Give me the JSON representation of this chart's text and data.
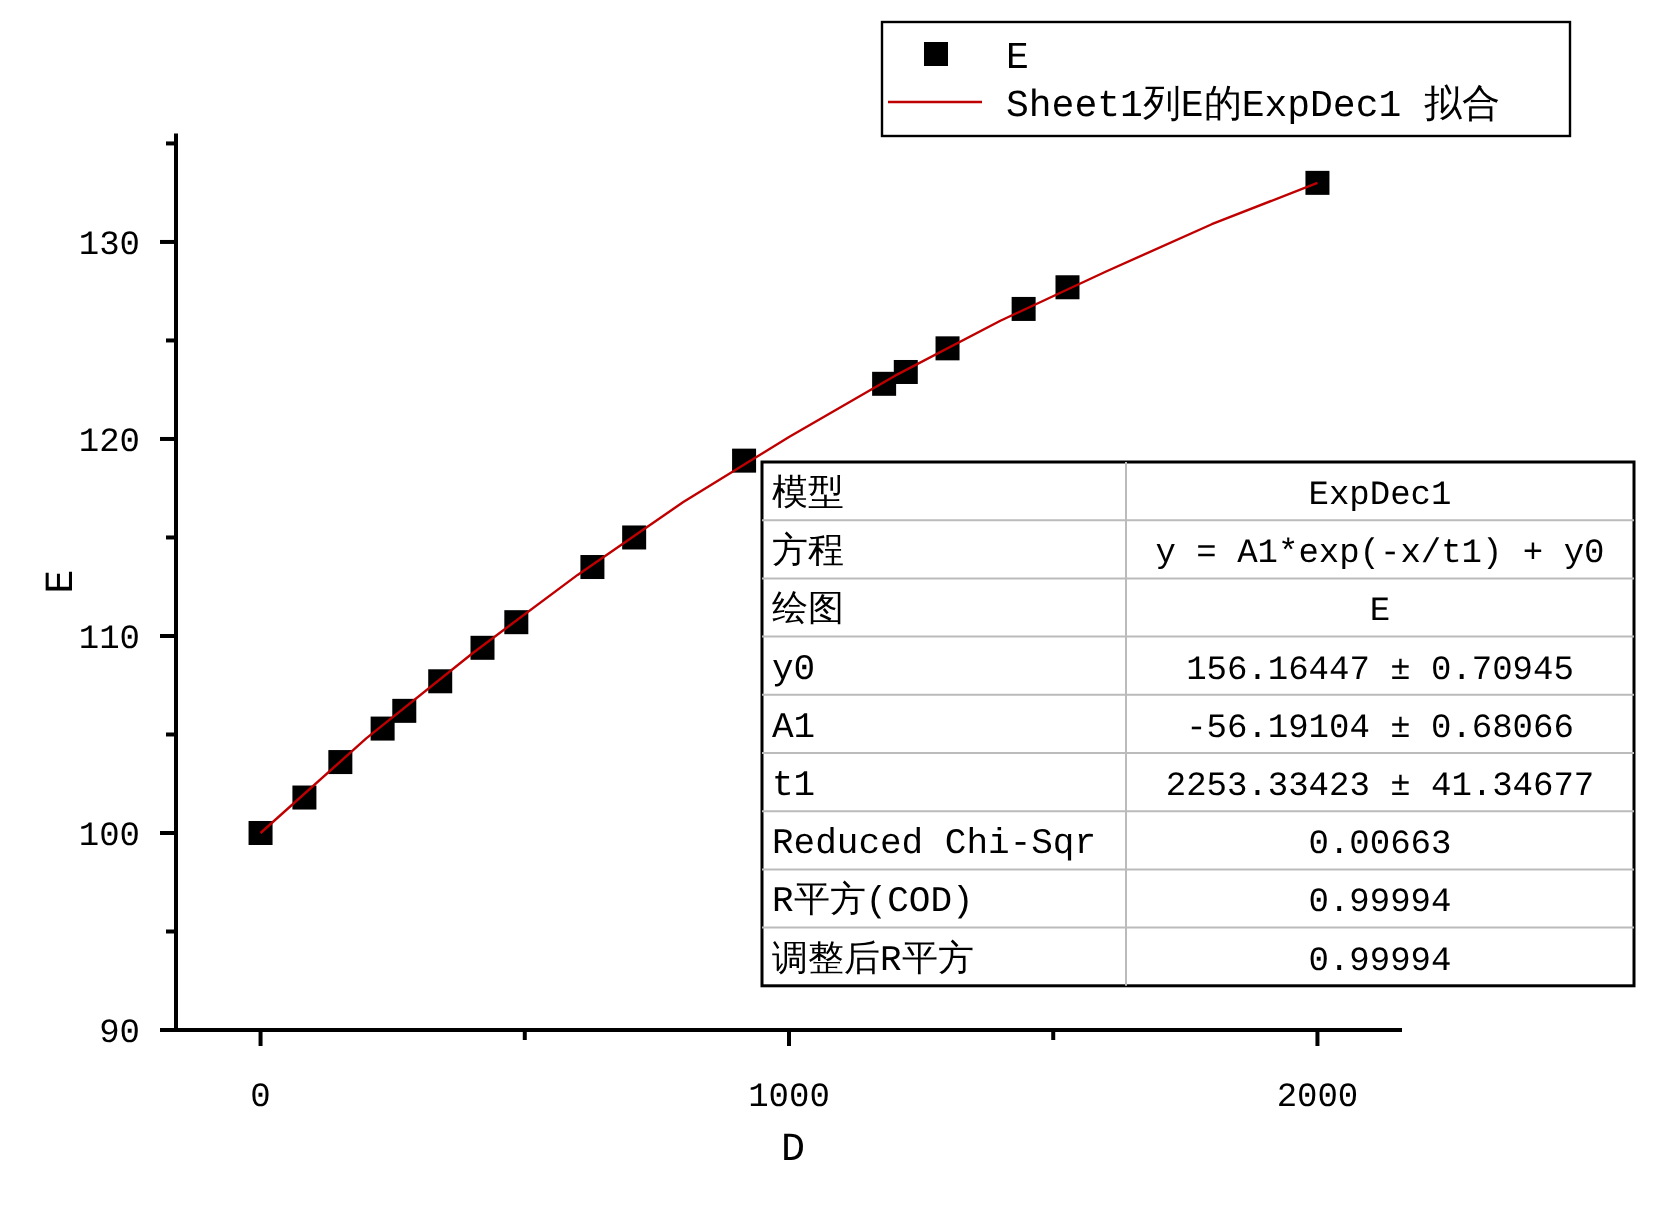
{
  "chart_data": {
    "type": "scatter",
    "xlabel": "D",
    "ylabel": "E",
    "xlim": [
      -160,
      2160
    ],
    "ylim": [
      90,
      135.5
    ],
    "xticks": [
      0,
      {
        "value": 500,
        "label": null
      },
      1000,
      {
        "value": 1500,
        "label": null
      },
      2000
    ],
    "yticks": [
      90,
      {
        "value": 95,
        "label": null
      },
      100,
      {
        "value": 105,
        "label": null
      },
      110,
      {
        "value": 115,
        "label": null
      },
      120,
      {
        "value": 125,
        "label": null
      },
      130,
      {
        "value": 135,
        "label": null
      }
    ],
    "legend": "top right",
    "series": [
      {
        "name": "E",
        "color": "#000000",
        "marker": "square",
        "x": [
          0,
          83,
          151,
          231,
          272,
          340,
          420,
          484,
          628,
          707,
          915,
          1180,
          1221,
          1300,
          1444,
          1527,
          2000
        ],
        "values": [
          100,
          101.8,
          103.6,
          105.3,
          106.2,
          107.7,
          109.4,
          110.7,
          113.5,
          115.0,
          118.9,
          122.8,
          123.4,
          124.6,
          126.6,
          127.7,
          133.0
        ]
      },
      {
        "name": "Sheet1列E的ExpDec1 拟合",
        "type": "line",
        "color": "#c00000",
        "marker": "none",
        "line_style": "solid",
        "x": [
          0,
          200,
          400,
          600,
          800,
          1000,
          1200,
          1400,
          1600,
          1800,
          2000
        ],
        "values": [
          100.0,
          104.8,
          109.1,
          113.1,
          116.8,
          120.1,
          123.2,
          126.0,
          128.5,
          130.9,
          133.0
        ]
      }
    ],
    "annotations": [
      "模型",
      "ExpDec1",
      "方程",
      "y = A1*exp(-x/t1) + y0",
      "绘图",
      "E",
      "y0",
      "156.16447 ± 0.70945",
      "A1",
      "-56.19104 ± 0.68066",
      "t1",
      "2253.33423 ± 41.34677",
      "Reduced Chi-Sqr",
      "0.00663",
      "R平方(COD)",
      "0.99994",
      "调整后R平方",
      "0.99994"
    ]
  }
}
